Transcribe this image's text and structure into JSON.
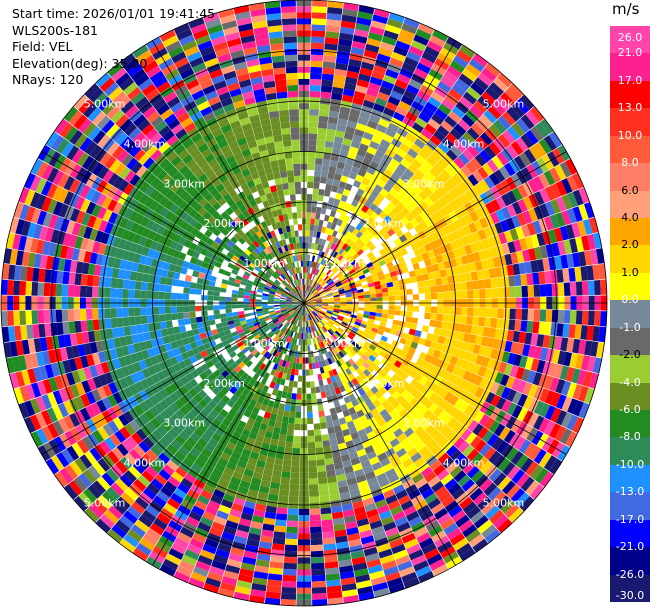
{
  "header": {
    "start_time": "Start time: 2026/01/01 19:41:45",
    "instrument": "WLS200s-181",
    "field": "Field: VEL",
    "elevation": "Elevation(deg): 35.00",
    "nrays": "NRays: 120"
  },
  "colorbar": {
    "title": "m/s",
    "ticks": [
      "26.0",
      "21.0",
      "17.0",
      "13.0",
      "10.0",
      "8.0",
      "6.0",
      "4.0",
      "2.0",
      "1.0",
      "0.0",
      "-1.0",
      "-2.0",
      "-4.0",
      "-6.0",
      "-8.0",
      "-10.0",
      "-13.0",
      "-17.0",
      "-21.0",
      "-26.0",
      "-30.0"
    ],
    "colors": [
      "#ff44aa",
      "#ff2090",
      "#ff0000",
      "#ff3020",
      "#ff5a3a",
      "#ff7f66",
      "#ffa07a",
      "#ffa500",
      "#ffd700",
      "#ffff00",
      "#778899",
      "#696969",
      "#9acd32",
      "#6b8e23",
      "#228b22",
      "#2e8b57",
      "#1e90ff",
      "#4169e1",
      "#0000ff",
      "#00008b",
      "#191970"
    ]
  },
  "chart_data": {
    "type": "heatmap",
    "subtype": "polar-ppi",
    "field": "VEL",
    "units": "m/s",
    "nrays": 120,
    "range_max_km": 6.0,
    "range_ring_labels": [
      "1.00km",
      "2.00km",
      "3.00km",
      "4.00km",
      "5.00km"
    ],
    "spoke_angles_deg": [
      0,
      30,
      60,
      90,
      120,
      150
    ],
    "approximate_regions": [
      {
        "azimuth": "NE-E-SE",
        "range_km": "0-4",
        "velocity_m_s": "1 to 6"
      },
      {
        "azimuth": "SW-W-NW",
        "range_km": "0-4",
        "velocity_m_s": "-1 to -8"
      },
      {
        "azimuth": "all",
        "range_km": "4-6",
        "velocity_m_s": "noisy, -30 to 26"
      }
    ]
  }
}
